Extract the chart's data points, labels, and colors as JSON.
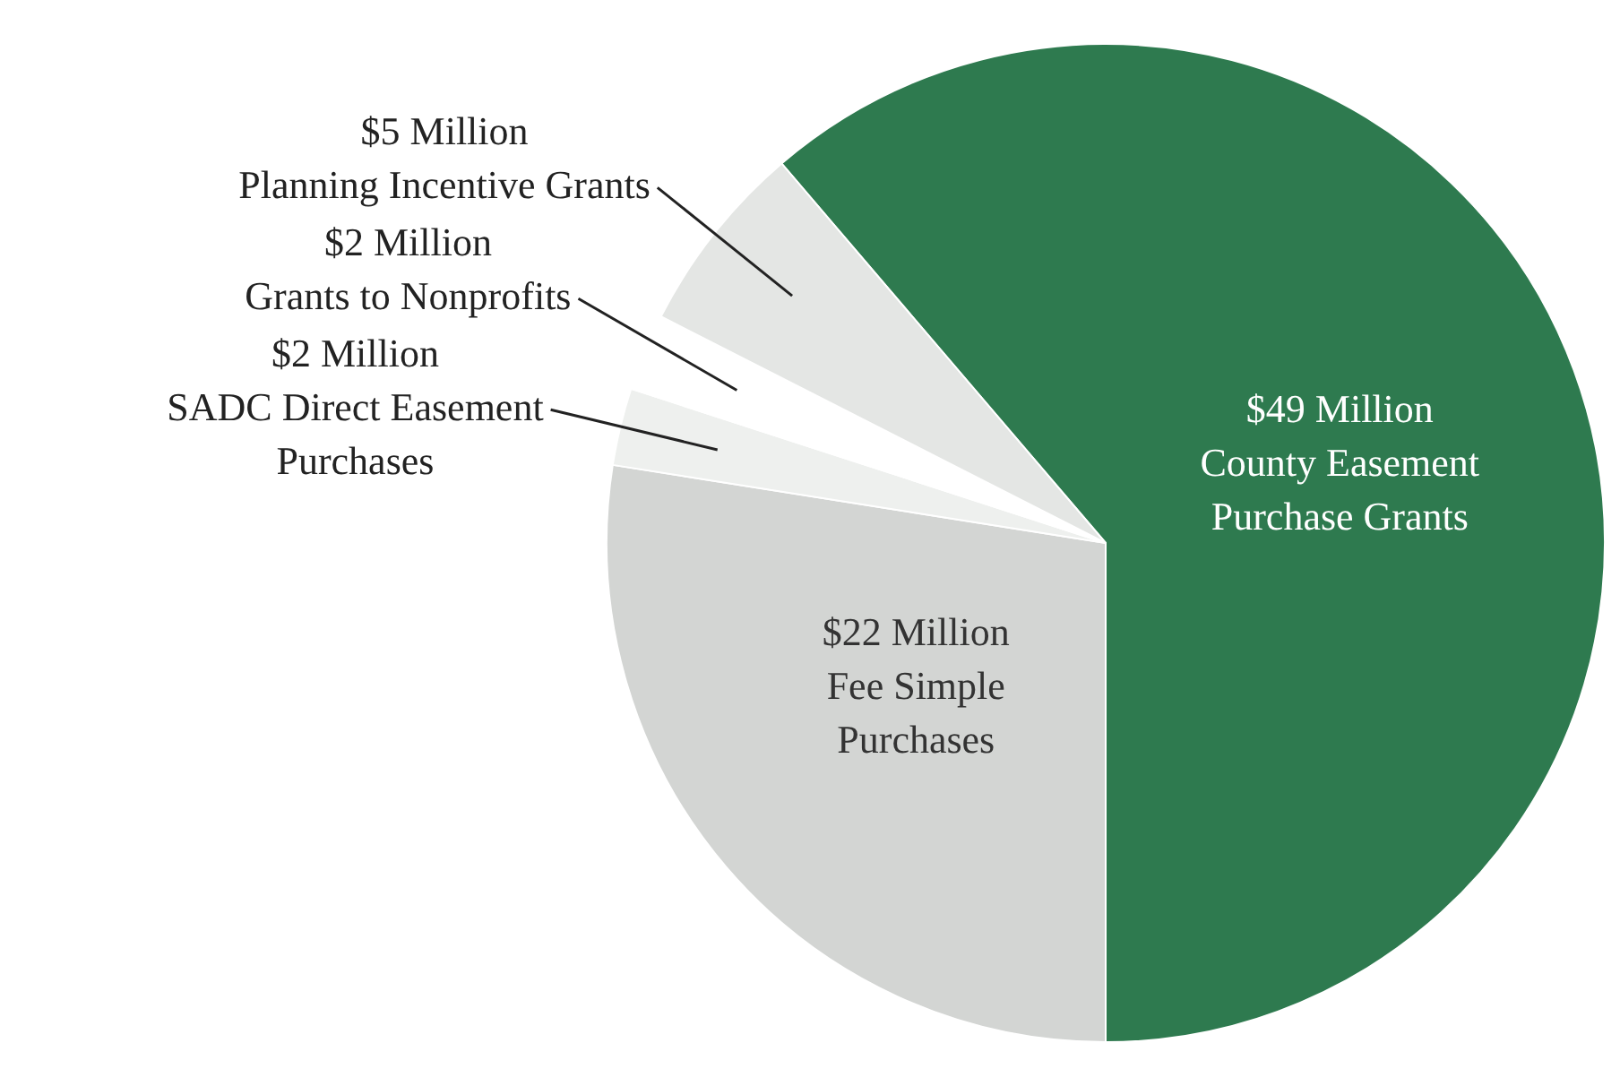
{
  "chart_data": {
    "type": "pie",
    "categories": [
      "County Easement Purchase Grants",
      "Fee Simple Purchases",
      "SADC Direct Easement Purchases",
      "Grants to Nonprofits",
      "Planning Incentive Grants"
    ],
    "values": [
      49,
      22,
      2,
      2,
      5
    ],
    "value_labels": [
      "$49 Million",
      "$22 Million",
      "$2 Million",
      "$2 Million",
      "$5 Million"
    ],
    "colors": [
      "#2e7a4f",
      "#d3d5d3",
      "#eef0ee",
      "#ffffff",
      "#e4e6e4"
    ],
    "legend": false
  }
}
